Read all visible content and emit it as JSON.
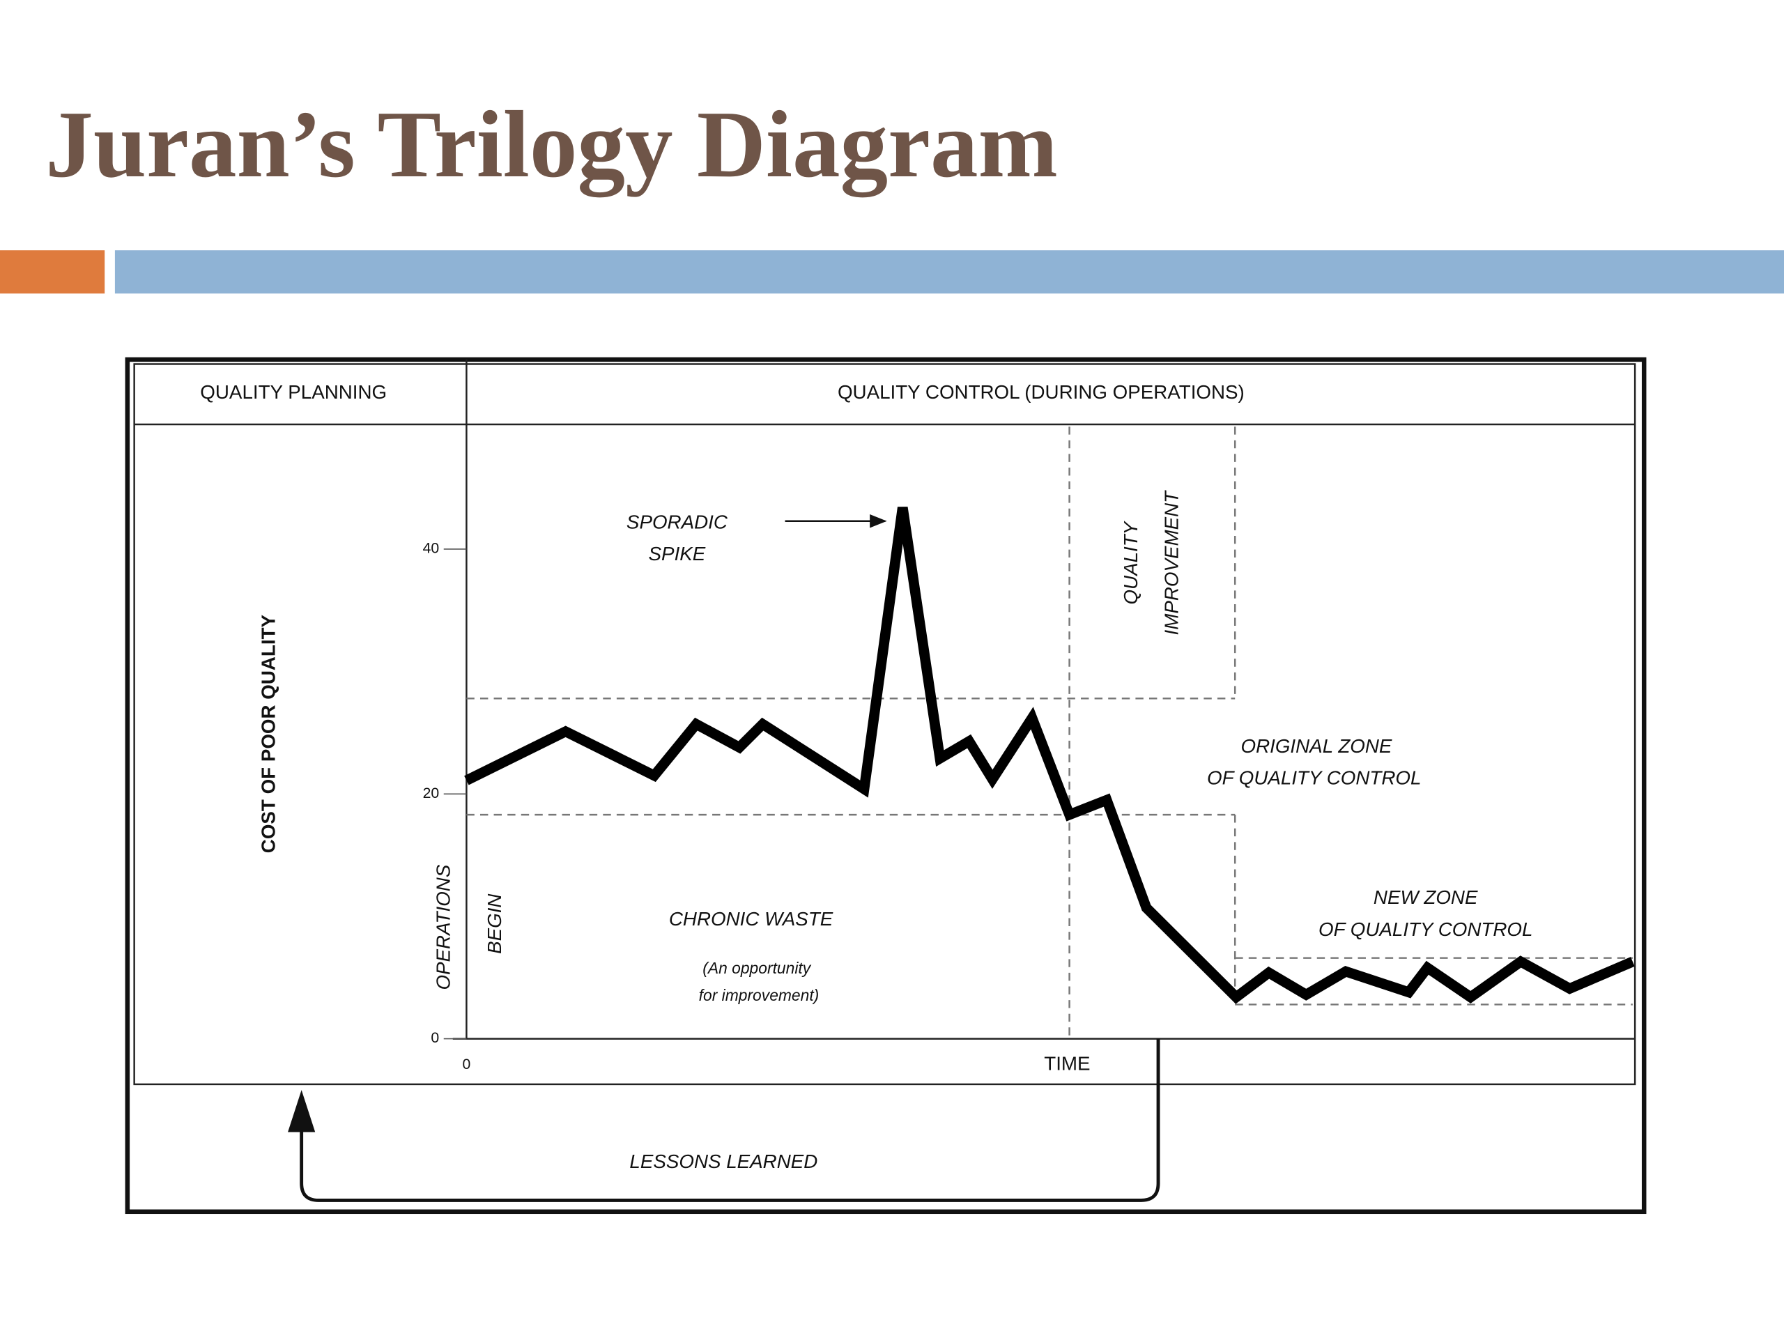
{
  "slide": {
    "title": "Juran’s Trilogy Diagram"
  },
  "diagram": {
    "header": [
      "QUALITY PLANNING",
      "QUALITY CONTROL (DURING OPERATIONS)"
    ],
    "footer": "LESSONS LEARNED"
  },
  "chart_data": {
    "type": "line",
    "y_label": "COST OF POOR QUALITY",
    "x_label": "TIME",
    "x": [
      0,
      8.5,
      16.1,
      19.7,
      23.4,
      25.4,
      34.1,
      37.4,
      40.6,
      43.1,
      45.1,
      48.5,
      51.7,
      54.9,
      58.3,
      66.0,
      68.8,
      72.0,
      75.4,
      80.8,
      82.4,
      86.1,
      90.4,
      94.6,
      100
    ],
    "values": [
      21.1,
      25.1,
      21.5,
      25.7,
      23.8,
      25.7,
      20.4,
      43.4,
      22.9,
      24.3,
      21.2,
      26.2,
      18.3,
      19.5,
      10.7,
      3.4,
      5.4,
      3.6,
      5.5,
      3.8,
      5.8,
      3.4,
      6.3,
      4.1,
      6.3
    ],
    "color": "#000000",
    "xlim": [
      0,
      100
    ],
    "ylim": [
      0,
      50
    ],
    "xticks": [
      0
    ],
    "yticks": [
      0,
      20,
      40
    ],
    "zones": {
      "original": [
        18.3,
        27.8
      ],
      "new": [
        2.8,
        6.6
      ]
    },
    "improvement_x": [
      51.7,
      65.9
    ],
    "annotations": {
      "sporadic_spike": [
        "SPORADIC",
        "SPIKE"
      ],
      "quality_improvement": [
        "QUALITY",
        "IMPROVEMENT"
      ],
      "original_zone": [
        "ORIGINAL ZONE",
        "OF QUALITY CONTROL"
      ],
      "new_zone": [
        "NEW ZONE",
        "OF QUALITY CONTROL"
      ],
      "chronic_waste": "CHRONIC WASTE",
      "opportunity": [
        "(An opportunity",
        "for improvement)"
      ],
      "operations_begin": [
        "OPERATIONS",
        "BEGIN"
      ]
    }
  }
}
